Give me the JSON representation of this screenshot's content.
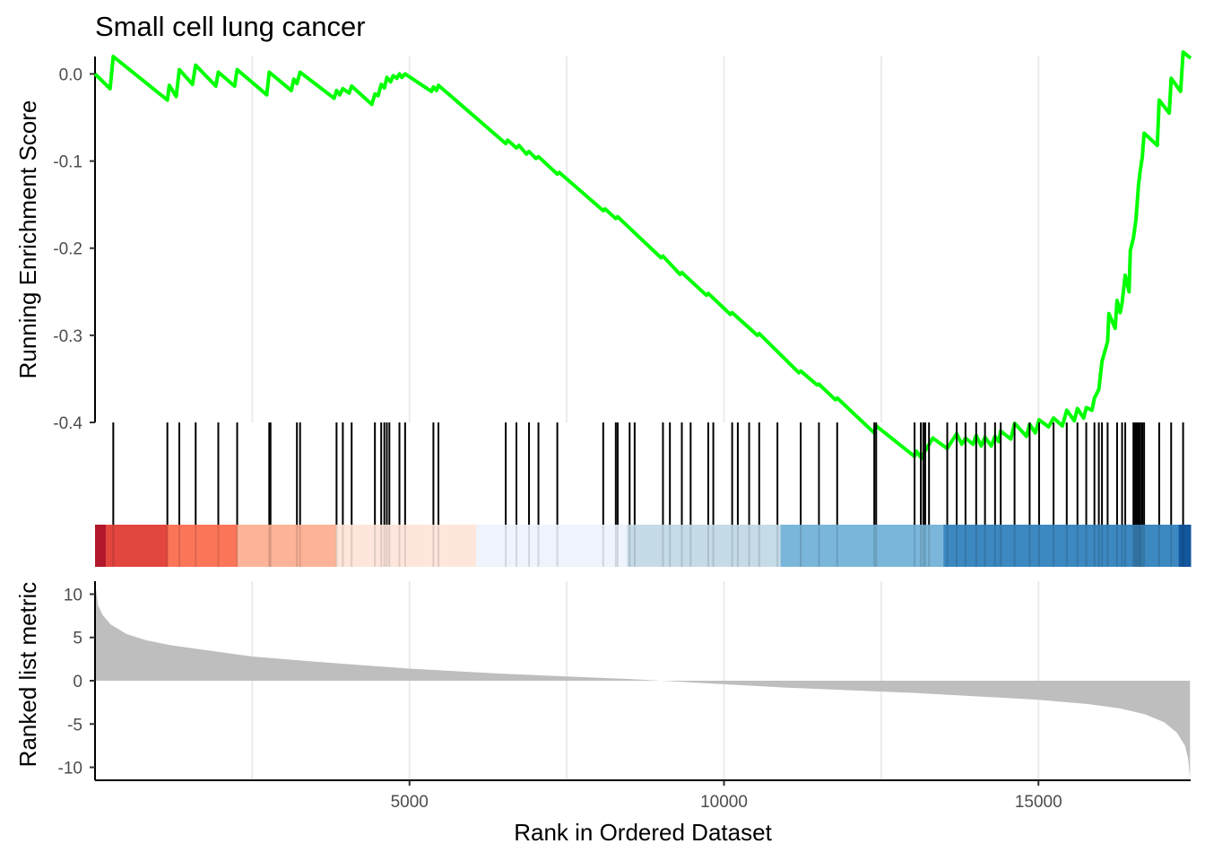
{
  "chart_data": {
    "type": "line",
    "title": "Small cell lung cancer",
    "xlabel": "Rank in Ordered Dataset",
    "x_ticks": [
      5000,
      10000,
      15000
    ],
    "xlim": [
      0,
      17420
    ],
    "colors": {
      "running_score_line": "#00ff00",
      "hit_lines": "#000000",
      "ranked_fill": "#bebebe",
      "heatmap_bins": [
        "#b2182b",
        "#e2463e",
        "#fb7558",
        "#fcb398",
        "#fee6dc",
        "#eef3fc",
        "#c5dbe8",
        "#7ab6d9",
        "#3c88c0",
        "#12569c"
      ]
    },
    "running_score_panel": {
      "ylabel": "Running Enrichment Score",
      "y_ticks": [
        0.0,
        -0.1,
        -0.2,
        -0.3,
        -0.4
      ],
      "y_tick_labels": [
        "0.0",
        "-0.1",
        "-0.2",
        "-0.3",
        "-0.4"
      ],
      "ylim": [
        -0.4,
        0.02
      ],
      "points": [
        [
          0,
          0.0
        ],
        [
          240,
          -0.017
        ],
        [
          290,
          0.02
        ],
        [
          1150,
          -0.03
        ],
        [
          1180,
          -0.013
        ],
        [
          1290,
          -0.026
        ],
        [
          1340,
          0.005
        ],
        [
          1550,
          -0.012
        ],
        [
          1600,
          0.01
        ],
        [
          1920,
          -0.014
        ],
        [
          1960,
          0.002
        ],
        [
          2220,
          -0.014
        ],
        [
          2260,
          0.005
        ],
        [
          2730,
          -0.024
        ],
        [
          2770,
          0.002
        ],
        [
          3120,
          -0.019
        ],
        [
          3160,
          -0.006
        ],
        [
          3210,
          -0.011
        ],
        [
          3260,
          0.002
        ],
        [
          3800,
          -0.028
        ],
        [
          3840,
          -0.019
        ],
        [
          3890,
          -0.024
        ],
        [
          3940,
          -0.017
        ],
        [
          4040,
          -0.022
        ],
        [
          4080,
          -0.014
        ],
        [
          4400,
          -0.035
        ],
        [
          4450,
          -0.023
        ],
        [
          4500,
          -0.025
        ],
        [
          4550,
          -0.012
        ],
        [
          4600,
          -0.016
        ],
        [
          4640,
          -0.004
        ],
        [
          4700,
          -0.009
        ],
        [
          4740,
          -0.002
        ],
        [
          4800,
          -0.005
        ],
        [
          4840,
          0.0
        ],
        [
          4880,
          -0.004
        ],
        [
          4930,
          0.0
        ],
        [
          5350,
          -0.02
        ],
        [
          5380,
          -0.015
        ],
        [
          5430,
          -0.019
        ],
        [
          5460,
          -0.013
        ],
        [
          6530,
          -0.08
        ],
        [
          6560,
          -0.076
        ],
        [
          6700,
          -0.085
        ],
        [
          6740,
          -0.082
        ],
        [
          6860,
          -0.092
        ],
        [
          6900,
          -0.089
        ],
        [
          7010,
          -0.097
        ],
        [
          7050,
          -0.095
        ],
        [
          7350,
          -0.115
        ],
        [
          7380,
          -0.113
        ],
        [
          8080,
          -0.157
        ],
        [
          8110,
          -0.155
        ],
        [
          8280,
          -0.166
        ],
        [
          8310,
          -0.164
        ],
        [
          9000,
          -0.211
        ],
        [
          9030,
          -0.209
        ],
        [
          9300,
          -0.23
        ],
        [
          9330,
          -0.228
        ],
        [
          9720,
          -0.254
        ],
        [
          9750,
          -0.252
        ],
        [
          10100,
          -0.276
        ],
        [
          10130,
          -0.274
        ],
        [
          10530,
          -0.3
        ],
        [
          10560,
          -0.298
        ],
        [
          11190,
          -0.343
        ],
        [
          11220,
          -0.341
        ],
        [
          11480,
          -0.357
        ],
        [
          11510,
          -0.356
        ],
        [
          11770,
          -0.374
        ],
        [
          11800,
          -0.372
        ],
        [
          12390,
          -0.412
        ],
        [
          12420,
          -0.404
        ],
        [
          13030,
          -0.439
        ],
        [
          13060,
          -0.433
        ],
        [
          13140,
          -0.441
        ],
        [
          13170,
          -0.436
        ],
        [
          13320,
          -0.418
        ],
        [
          13550,
          -0.43
        ],
        [
          13700,
          -0.413
        ],
        [
          13780,
          -0.425
        ],
        [
          13840,
          -0.418
        ],
        [
          13960,
          -0.425
        ],
        [
          14010,
          -0.415
        ],
        [
          14090,
          -0.427
        ],
        [
          14150,
          -0.417
        ],
        [
          14250,
          -0.427
        ],
        [
          14310,
          -0.416
        ],
        [
          14370,
          -0.422
        ],
        [
          14400,
          -0.41
        ],
        [
          14560,
          -0.419
        ],
        [
          14620,
          -0.401
        ],
        [
          14810,
          -0.416
        ],
        [
          14860,
          -0.402
        ],
        [
          14950,
          -0.412
        ],
        [
          15010,
          -0.397
        ],
        [
          15160,
          -0.405
        ],
        [
          15240,
          -0.395
        ],
        [
          15380,
          -0.404
        ],
        [
          15450,
          -0.386
        ],
        [
          15570,
          -0.398
        ],
        [
          15620,
          -0.384
        ],
        [
          15720,
          -0.395
        ],
        [
          15760,
          -0.383
        ],
        [
          15850,
          -0.386
        ],
        [
          15890,
          -0.372
        ],
        [
          15960,
          -0.362
        ],
        [
          16010,
          -0.33
        ],
        [
          16100,
          -0.307
        ],
        [
          16120,
          -0.275
        ],
        [
          16220,
          -0.292
        ],
        [
          16250,
          -0.26
        ],
        [
          16300,
          -0.274
        ],
        [
          16330,
          -0.263
        ],
        [
          16380,
          -0.231
        ],
        [
          16440,
          -0.25
        ],
        [
          16460,
          -0.203
        ],
        [
          16510,
          -0.188
        ],
        [
          16550,
          -0.167
        ],
        [
          16570,
          -0.148
        ],
        [
          16590,
          -0.128
        ],
        [
          16620,
          -0.11
        ],
        [
          16650,
          -0.096
        ],
        [
          16680,
          -0.068
        ],
        [
          16890,
          -0.082
        ],
        [
          16920,
          -0.03
        ],
        [
          17080,
          -0.045
        ],
        [
          17110,
          -0.005
        ],
        [
          17260,
          -0.02
        ],
        [
          17300,
          0.025
        ],
        [
          17420,
          0.018
        ]
      ]
    },
    "hits": [
      290,
      1150,
      1340,
      1600,
      1960,
      2260,
      2770,
      2790,
      3210,
      3260,
      3840,
      3940,
      4080,
      4450,
      4550,
      4600,
      4640,
      4680,
      4840,
      4930,
      5380,
      5460,
      6530,
      6700,
      6900,
      7050,
      7350,
      8080,
      8280,
      8310,
      8500,
      8580,
      9030,
      9140,
      9330,
      9470,
      9750,
      9830,
      10130,
      10220,
      10400,
      10560,
      10850,
      11220,
      11510,
      11800,
      12390,
      12420,
      13030,
      13130,
      13170,
      13200,
      13260,
      13550,
      13700,
      13840,
      14010,
      14150,
      14310,
      14400,
      14620,
      14860,
      15010,
      15240,
      15450,
      15620,
      15760,
      15890,
      15960,
      16010,
      16100,
      16250,
      16330,
      16380,
      16510,
      16530,
      16550,
      16570,
      16590,
      16610,
      16620,
      16650,
      16680,
      16920,
      17110,
      17300
    ],
    "heatmap_bins": [
      {
        "start": 0,
        "end": 170,
        "color_index": 0
      },
      {
        "start": 170,
        "end": 1150,
        "color_index": 1
      },
      {
        "start": 1150,
        "end": 2260,
        "color_index": 2
      },
      {
        "start": 2260,
        "end": 3830,
        "color_index": 3
      },
      {
        "start": 3830,
        "end": 6060,
        "color_index": 4
      },
      {
        "start": 6060,
        "end": 8460,
        "color_index": 5
      },
      {
        "start": 8460,
        "end": 10900,
        "color_index": 6
      },
      {
        "start": 10900,
        "end": 13490,
        "color_index": 7
      },
      {
        "start": 13490,
        "end": 17230,
        "color_index": 8
      },
      {
        "start": 17230,
        "end": 17420,
        "color_index": 9
      }
    ],
    "ranked_list_panel": {
      "ylabel": "Ranked list metric",
      "y_ticks": [
        10,
        5,
        0,
        -5,
        -10
      ],
      "y_tick_labels": [
        "10",
        "5",
        "0",
        "-5",
        "-10"
      ],
      "ylim": [
        -11.5,
        11.5
      ],
      "curve": [
        [
          0,
          11.5
        ],
        [
          50,
          8.7
        ],
        [
          120,
          7.6
        ],
        [
          250,
          6.5
        ],
        [
          500,
          5.4
        ],
        [
          800,
          4.7
        ],
        [
          1200,
          4.1
        ],
        [
          1800,
          3.5
        ],
        [
          2500,
          2.8
        ],
        [
          3500,
          2.2
        ],
        [
          5000,
          1.4
        ],
        [
          6500,
          0.8
        ],
        [
          7500,
          0.5
        ],
        [
          8500,
          0.2
        ],
        [
          9000,
          0.0
        ],
        [
          10000,
          -0.4
        ],
        [
          11000,
          -0.8
        ],
        [
          12000,
          -1.1
        ],
        [
          13000,
          -1.4
        ],
        [
          14000,
          -1.8
        ],
        [
          15000,
          -2.2
        ],
        [
          15800,
          -2.7
        ],
        [
          16300,
          -3.2
        ],
        [
          16700,
          -3.9
        ],
        [
          17000,
          -4.8
        ],
        [
          17200,
          -6.0
        ],
        [
          17330,
          -7.5
        ],
        [
          17380,
          -9.0
        ],
        [
          17410,
          -11.3
        ]
      ]
    }
  }
}
